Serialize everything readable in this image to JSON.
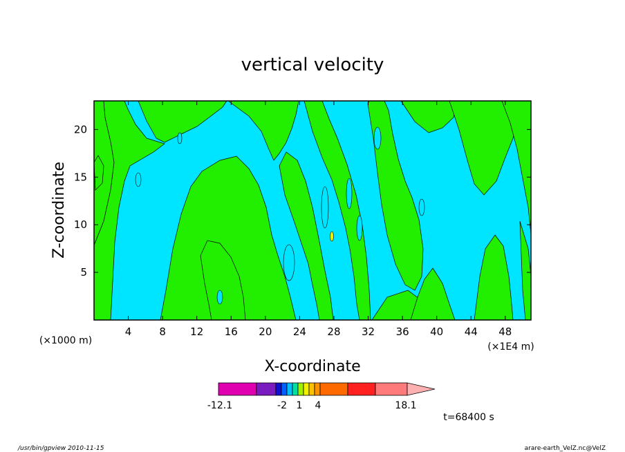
{
  "chart_data": {
    "type": "heatmap",
    "title": "vertical velocity",
    "xlabel": "X-coordinate",
    "ylabel": "Z-coordinate",
    "x_unit_left": "(×1000 m)",
    "x_unit_right": "(×1E4 m)",
    "xlim": [
      0,
      51
    ],
    "ylim": [
      0,
      23
    ],
    "xticks": [
      "4",
      "8",
      "12",
      "16",
      "20",
      "24",
      "28",
      "32",
      "36",
      "40",
      "44",
      "48"
    ],
    "yticks": [
      "5",
      "10",
      "15",
      "20"
    ],
    "colorbar": {
      "labels": [
        "-12.1",
        "-2",
        "1",
        "4",
        "18.1"
      ],
      "colors": [
        "#e000b0",
        "#7a1cc0",
        "#1010d0",
        "#0060ff",
        "#00c0ff",
        "#00e0a0",
        "#a0f000",
        "#f0f000",
        "#ffc000",
        "#ff9000",
        "#ff6a00",
        "#ff2020",
        "#ff7a7a",
        "#ffb0b0"
      ]
    },
    "time_label": "t=68400 s",
    "palette": {
      "cyan": "#00e5ff",
      "green": "#22ee00",
      "yellow": "#f0f000"
    }
  },
  "footer": {
    "left": "/usr/bin/gpview   2010-11-15",
    "right": "arare-earth_VelZ.nc@VelZ"
  }
}
